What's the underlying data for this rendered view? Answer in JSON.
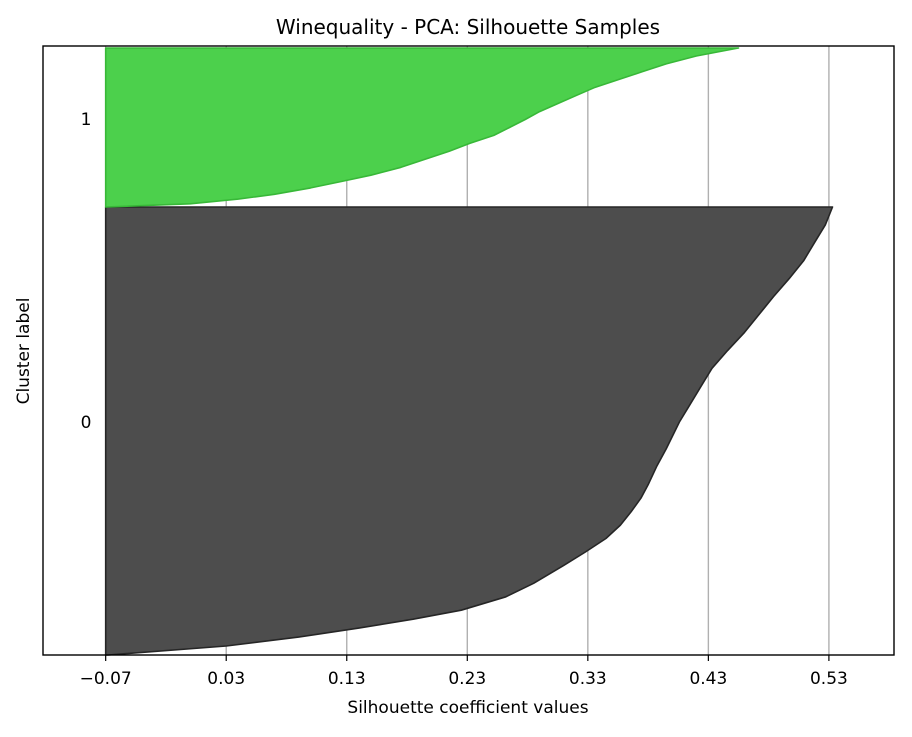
{
  "chart_data": {
    "type": "area",
    "subtype": "silhouette-plot",
    "title": "Winequality - PCA: Silhouette Samples",
    "xlabel": "Silhouette coefficient values",
    "ylabel": "Cluster label",
    "xlim": [
      -0.122,
      0.584
    ],
    "xticks": [
      -0.07,
      0.03,
      0.13,
      0.23,
      0.33,
      0.43,
      0.53
    ],
    "xtick_labels": [
      "−0.07",
      "0.03",
      "0.13",
      "0.23",
      "0.33",
      "0.43",
      "0.53"
    ],
    "grid": "vertical",
    "clusters": [
      {
        "label": "0",
        "color": "#4d4d4d",
        "edge_color": "#262626",
        "profile": [
          [
            0.0,
            -0.068
          ],
          [
            0.02,
            0.03
          ],
          [
            0.04,
            0.09
          ],
          [
            0.06,
            0.14
          ],
          [
            0.08,
            0.185
          ],
          [
            0.1,
            0.225
          ],
          [
            0.13,
            0.262
          ],
          [
            0.16,
            0.285
          ],
          [
            0.2,
            0.31
          ],
          [
            0.23,
            0.328
          ],
          [
            0.26,
            0.345
          ],
          [
            0.29,
            0.357
          ],
          [
            0.32,
            0.366
          ],
          [
            0.35,
            0.374
          ],
          [
            0.38,
            0.38
          ],
          [
            0.42,
            0.387
          ],
          [
            0.46,
            0.395
          ],
          [
            0.52,
            0.406
          ],
          [
            0.56,
            0.415
          ],
          [
            0.6,
            0.424
          ],
          [
            0.64,
            0.433
          ],
          [
            0.68,
            0.446
          ],
          [
            0.72,
            0.46
          ],
          [
            0.76,
            0.472
          ],
          [
            0.8,
            0.484
          ],
          [
            0.84,
            0.497
          ],
          [
            0.88,
            0.509
          ],
          [
            0.92,
            0.518
          ],
          [
            0.96,
            0.527
          ],
          [
            1.0,
            0.533
          ]
        ]
      },
      {
        "label": "1",
        "color": "#4cd04c",
        "edge_color": "#38b838",
        "profile": [
          [
            0.0,
            -0.07
          ],
          [
            0.02,
            0.0
          ],
          [
            0.05,
            0.04
          ],
          [
            0.08,
            0.07
          ],
          [
            0.12,
            0.1
          ],
          [
            0.16,
            0.125
          ],
          [
            0.2,
            0.15
          ],
          [
            0.25,
            0.175
          ],
          [
            0.3,
            0.195
          ],
          [
            0.35,
            0.215
          ],
          [
            0.4,
            0.232
          ],
          [
            0.45,
            0.252
          ],
          [
            0.5,
            0.265
          ],
          [
            0.55,
            0.278
          ],
          [
            0.6,
            0.29
          ],
          [
            0.65,
            0.305
          ],
          [
            0.7,
            0.32
          ],
          [
            0.75,
            0.335
          ],
          [
            0.8,
            0.355
          ],
          [
            0.85,
            0.375
          ],
          [
            0.9,
            0.395
          ],
          [
            0.95,
            0.42
          ],
          [
            1.0,
            0.455
          ]
        ]
      }
    ]
  }
}
